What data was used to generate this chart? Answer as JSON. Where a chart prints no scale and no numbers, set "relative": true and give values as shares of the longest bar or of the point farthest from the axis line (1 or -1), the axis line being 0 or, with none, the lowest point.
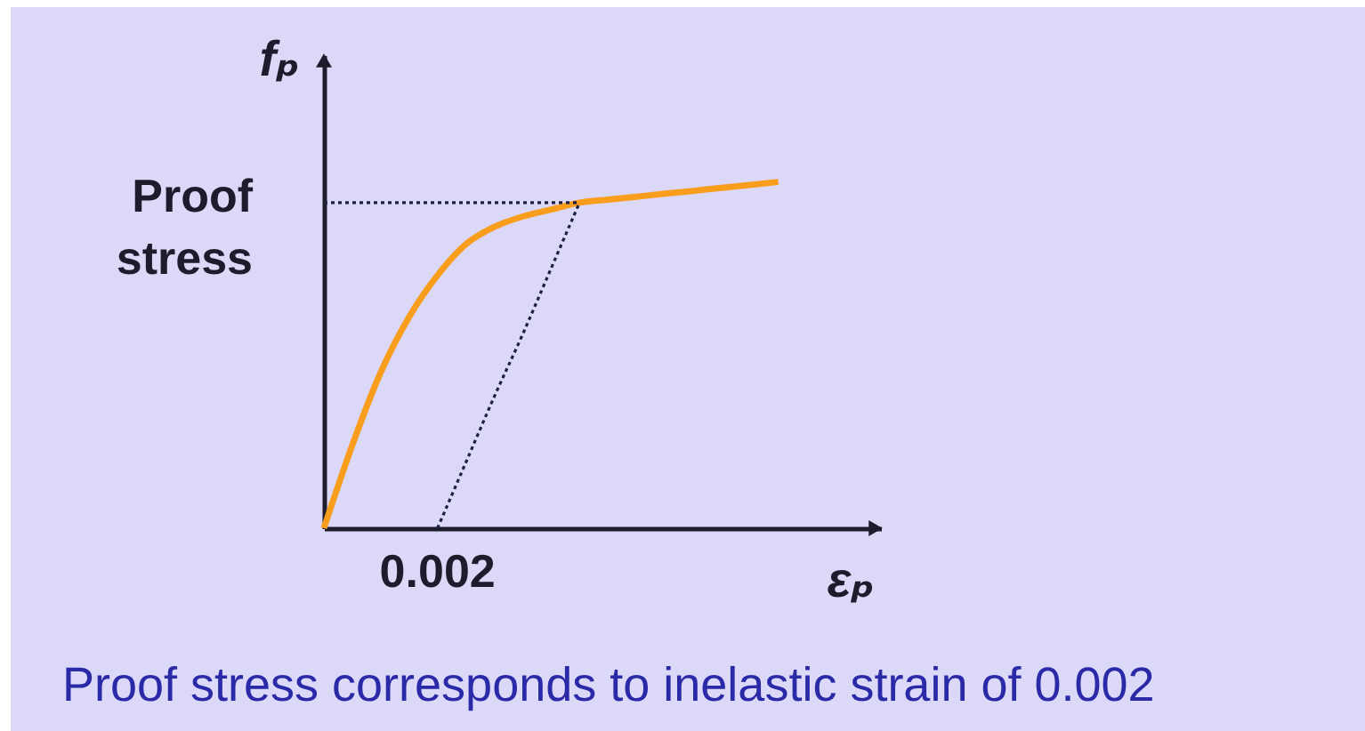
{
  "chart_data": {
    "type": "line",
    "relative": true,
    "xlabel": "εₚ",
    "ylabel": "fₚ",
    "categories": [
      null,
      null,
      null,
      null,
      null,
      null,
      null,
      null,
      null,
      null,
      null,
      null,
      null,
      null,
      null,
      null,
      null
    ],
    "series": [
      {
        "color": "#f99d1c",
        "values": [
          0,
          0.24,
          0.45,
          0.61,
          0.73,
          0.82,
          0.87,
          0.9,
          0.92,
          0.94,
          0.949,
          0.957,
          0.966,
          0.974,
          0.983,
          0.991,
          1
        ]
      },
      {
        "color": "#202040",
        "values": [
          0.94,
          0.94,
          0.94,
          0.94,
          0.94,
          0.94,
          0.94,
          0.94,
          0.94,
          0.94,
          null,
          null,
          null,
          null,
          null,
          null,
          null
        ],
        "line_style": "dotted"
      },
      {
        "color": "#202040",
        "values": [
          null,
          null,
          null,
          null,
          0,
          0.19,
          0.38,
          0.56,
          0.75,
          0.94,
          null,
          null,
          null,
          null,
          null,
          null,
          null
        ],
        "line_style": "dotted"
      }
    ],
    "annotations": [
      "Proof stress",
      {
        "text": "0.002",
        "y": 0
      },
      "Proof stress corresponds to inelastic strain of 0.002"
    ]
  }
}
